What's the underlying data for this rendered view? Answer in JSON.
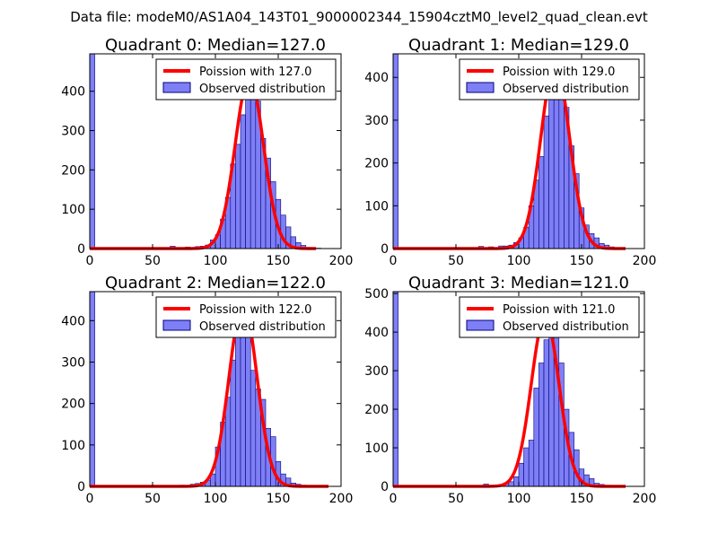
{
  "figure_title": "Data file: modeM0/AS1A04_143T01_9000002344_15904cztM0_level2_quad_clean.evt",
  "colors": {
    "fit": "#ff0000",
    "bar_fill": "#7f7ff5",
    "bar_edge": "#00007f"
  },
  "chart_data": [
    {
      "type": "bar",
      "title": "Quadrant 0: Median=127.0",
      "median": 127.0,
      "legend": {
        "fit_label": "Poission with 127.0",
        "hist_label": "Observed distribution",
        "position": "top-right"
      },
      "xlim": [
        0,
        200
      ],
      "ylim": [
        0,
        495
      ],
      "xticks": [
        0,
        50,
        100,
        150,
        200
      ],
      "yticks": [
        0,
        100,
        200,
        300,
        400
      ],
      "bin_width": 4,
      "bins": [
        [
          0,
          495
        ],
        [
          64,
          6
        ],
        [
          76,
          4
        ],
        [
          84,
          5
        ],
        [
          88,
          6
        ],
        [
          92,
          9
        ],
        [
          96,
          22
        ],
        [
          100,
          35
        ],
        [
          104,
          75
        ],
        [
          108,
          130
        ],
        [
          112,
          215
        ],
        [
          116,
          265
        ],
        [
          120,
          340
        ],
        [
          124,
          395
        ],
        [
          128,
          435
        ],
        [
          132,
          375
        ],
        [
          136,
          280
        ],
        [
          140,
          230
        ],
        [
          144,
          170
        ],
        [
          148,
          125
        ],
        [
          152,
          85
        ],
        [
          156,
          55
        ],
        [
          160,
          30
        ],
        [
          164,
          15
        ],
        [
          168,
          8
        ],
        [
          172,
          3
        ],
        [
          176,
          2
        ],
        [
          180,
          1
        ]
      ],
      "fit_peak": 435,
      "fit_range": [
        0,
        180
      ]
    },
    {
      "type": "bar",
      "title": "Quadrant 1: Median=129.0",
      "median": 129.0,
      "legend": {
        "fit_label": "Poission with 129.0",
        "hist_label": "Observed distribution",
        "position": "top-right"
      },
      "xlim": [
        0,
        200
      ],
      "ylim": [
        0,
        455
      ],
      "xticks": [
        0,
        50,
        100,
        150,
        200
      ],
      "yticks": [
        0,
        100,
        200,
        300,
        400
      ],
      "bin_width": 4,
      "bins": [
        [
          0,
          455
        ],
        [
          68,
          5
        ],
        [
          76,
          4
        ],
        [
          84,
          6
        ],
        [
          88,
          6
        ],
        [
          92,
          8
        ],
        [
          96,
          14
        ],
        [
          100,
          25
        ],
        [
          104,
          50
        ],
        [
          108,
          100
        ],
        [
          112,
          160
        ],
        [
          116,
          215
        ],
        [
          120,
          310
        ],
        [
          124,
          380
        ],
        [
          128,
          415
        ],
        [
          132,
          405
        ],
        [
          136,
          330
        ],
        [
          140,
          240
        ],
        [
          144,
          175
        ],
        [
          148,
          95
        ],
        [
          152,
          55
        ],
        [
          156,
          35
        ],
        [
          160,
          25
        ],
        [
          164,
          12
        ],
        [
          168,
          8
        ],
        [
          172,
          4
        ],
        [
          176,
          2
        ],
        [
          180,
          1
        ]
      ],
      "fit_peak": 432,
      "fit_range": [
        0,
        185
      ]
    },
    {
      "type": "bar",
      "title": "Quadrant 2: Median=122.0",
      "median": 122.0,
      "legend": {
        "fit_label": "Poission with 122.0",
        "hist_label": "Observed distribution",
        "position": "top-right"
      },
      "xlim": [
        0,
        200
      ],
      "ylim": [
        0,
        470
      ],
      "xticks": [
        0,
        50,
        100,
        150,
        200
      ],
      "yticks": [
        0,
        100,
        200,
        300,
        400
      ],
      "bin_width": 4,
      "bins": [
        [
          0,
          470
        ],
        [
          72,
          3
        ],
        [
          80,
          5
        ],
        [
          84,
          7
        ],
        [
          88,
          10
        ],
        [
          92,
          15
        ],
        [
          96,
          30
        ],
        [
          100,
          95
        ],
        [
          104,
          155
        ],
        [
          108,
          215
        ],
        [
          112,
          305
        ],
        [
          116,
          385
        ],
        [
          120,
          440
        ],
        [
          124,
          390
        ],
        [
          128,
          280
        ],
        [
          132,
          235
        ],
        [
          136,
          210
        ],
        [
          140,
          140
        ],
        [
          144,
          120
        ],
        [
          148,
          60
        ],
        [
          152,
          30
        ],
        [
          156,
          20
        ],
        [
          160,
          8
        ],
        [
          164,
          5
        ],
        [
          168,
          3
        ],
        [
          172,
          2
        ],
        [
          176,
          1
        ],
        [
          180,
          1
        ]
      ],
      "fit_peak": 440,
      "fit_range": [
        0,
        190
      ]
    },
    {
      "type": "bar",
      "title": "Quadrant 3: Median=121.0",
      "median": 121.0,
      "legend": {
        "fit_label": "Poission with 121.0",
        "hist_label": "Observed distribution",
        "position": "top-right"
      },
      "xlim": [
        0,
        200
      ],
      "ylim": [
        0,
        505
      ],
      "xticks": [
        0,
        50,
        100,
        150,
        200
      ],
      "yticks": [
        0,
        100,
        200,
        300,
        400,
        500
      ],
      "bin_width": 4,
      "bins": [
        [
          0,
          505
        ],
        [
          72,
          6
        ],
        [
          80,
          4
        ],
        [
          84,
          5
        ],
        [
          88,
          8
        ],
        [
          92,
          12
        ],
        [
          96,
          25
        ],
        [
          100,
          60
        ],
        [
          104,
          100
        ],
        [
          108,
          120
        ],
        [
          112,
          255
        ],
        [
          116,
          320
        ],
        [
          120,
          380
        ],
        [
          124,
          450
        ],
        [
          128,
          390
        ],
        [
          132,
          320
        ],
        [
          136,
          200
        ],
        [
          140,
          140
        ],
        [
          144,
          95
        ],
        [
          148,
          45
        ],
        [
          152,
          30
        ],
        [
          156,
          20
        ],
        [
          160,
          8
        ],
        [
          164,
          5
        ],
        [
          168,
          3
        ],
        [
          172,
          2
        ]
      ],
      "fit_peak": 440,
      "fit_range": [
        0,
        185
      ]
    }
  ]
}
